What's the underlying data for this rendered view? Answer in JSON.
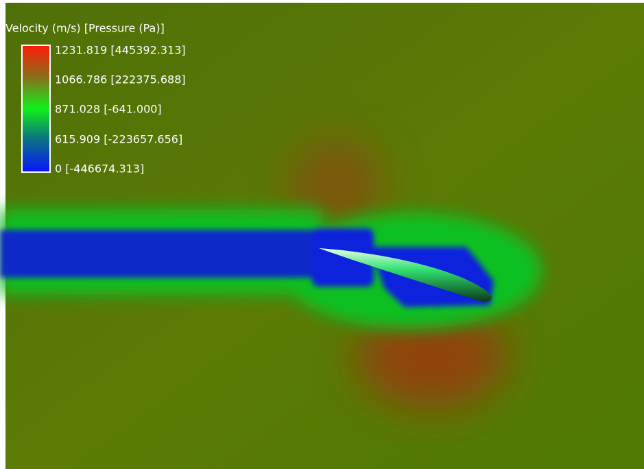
{
  "legend": {
    "title": "Velocity (m/s) [Pressure (Pa)]",
    "labels": [
      "1231.819 [445392.313]",
      "1066.786 [222375.688]",
      "871.028 [-641.000]",
      "615.909 [-223657.656]",
      "0 [-446674.313]"
    ]
  }
}
